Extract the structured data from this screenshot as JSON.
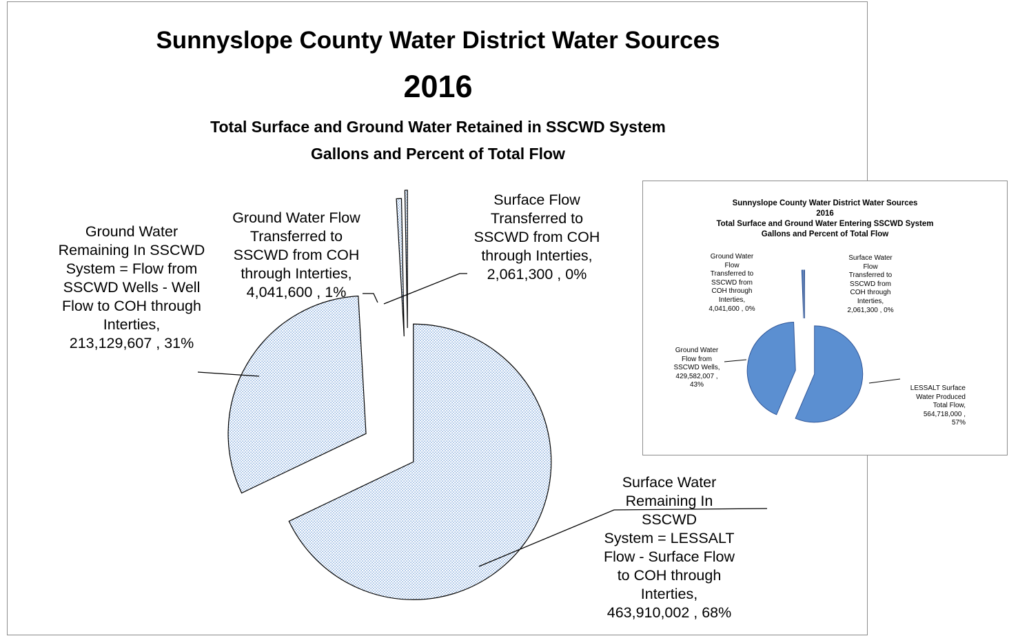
{
  "chart_data": [
    {
      "type": "pie",
      "title": "Sunnyslope County Water District Water Sources",
      "year": "2016",
      "subtitle_line1": "Total Surface and Ground Water  Retained in SSCWD System",
      "subtitle_line2": "Gallons and Percent of Total Flow",
      "pattern_colors": {
        "fill": "#ffffff",
        "dots": "#8fb3e0",
        "stroke": "#000000"
      },
      "slices": [
        {
          "label": "Surface Water\nRemaining In SSCWD\nSystem = LESSALT\nFlow - Surface Flow\nto COH through\nInterties,\n463,910,002 , 68%",
          "value": 463910002
        },
        {
          "label": "Ground Water\nRemaining In SSCWD\nSystem = Flow from\nSSCWD Wells - Well\nFlow to COH through\nInterties,\n213,129,607 , 31%",
          "value": 213129607
        },
        {
          "label": "Ground Water Flow\nTransferred to\nSSCWD from COH\nthrough Interties,\n4,041,600 , 1%",
          "value": 4041600
        },
        {
          "label": "Surface Flow\nTransferred to\nSSCWD from COH\nthrough Interties,\n2,061,300 , 0%",
          "value": 2061300
        }
      ]
    },
    {
      "type": "pie",
      "title": "Sunnyslope County Water District Water Sources",
      "year": "2016",
      "subtitle_line1": "Total Surface and Ground Water Entering  SSCWD System",
      "subtitle_line2": "Gallons and Percent of Total Flow",
      "colors": {
        "fill": "#5b8fd1",
        "stroke": "#2f5597"
      },
      "slices": [
        {
          "label": "LESSALT Surface\nWater Produced\nTotal Flow,\n564,718,000 ,\n57%",
          "value": 564718000
        },
        {
          "label": "Ground Water\nFlow from\nSSCWD Wells,\n429,582,007 ,\n43%",
          "value": 429582007
        },
        {
          "label": "Ground Water\nFlow\nTransferred to\nSSCWD from\nCOH through\nInterties,\n4,041,600 , 0%",
          "value": 4041600
        },
        {
          "label": "Surface Water\nFlow\nTransferred to\nSSCWD from\nCOH through\nInterties,\n2,061,300 , 0%",
          "value": 2061300
        }
      ]
    }
  ]
}
